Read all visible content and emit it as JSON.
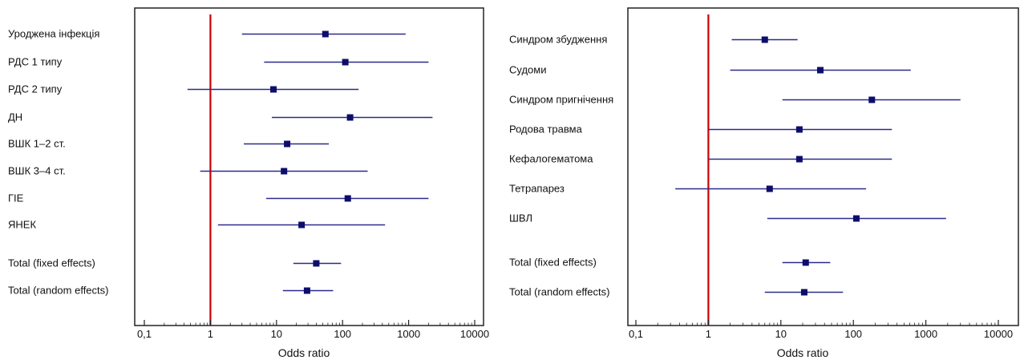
{
  "colors": {
    "ci": "#2b2b8c",
    "point": "#0d0d6b",
    "ref": "#cc0000",
    "frame": "#222222"
  },
  "chart_data": [
    {
      "type": "forest",
      "xlabel": "Odds ratio",
      "xscale": "log",
      "xlim": [
        0.1,
        20000
      ],
      "xticks": [
        {
          "value": 0.1,
          "label": "0,1"
        },
        {
          "value": 1,
          "label": "1"
        },
        {
          "value": 10,
          "label": "10"
        },
        {
          "value": 100,
          "label": "100"
        },
        {
          "value": 1000,
          "label": "1000"
        },
        {
          "value": 10000,
          "label": "10000"
        }
      ],
      "reference_line": 1,
      "rows": [
        {
          "label": "Уроджена інфекція",
          "or": 55,
          "lo": 3.0,
          "hi": 900
        },
        {
          "label": "РДС 1 типу",
          "or": 110,
          "lo": 6.5,
          "hi": 2000
        },
        {
          "label": "РДС 2 типу",
          "or": 9,
          "lo": 0.45,
          "hi": 175
        },
        {
          "label": "ДН",
          "or": 130,
          "lo": 8.5,
          "hi": 2300
        },
        {
          "label": "ВШК 1–2 ст.",
          "or": 14.5,
          "lo": 3.2,
          "hi": 62
        },
        {
          "label": "ВШК 3–4 ст.",
          "or": 13,
          "lo": 0.7,
          "hi": 240
        },
        {
          "label": "ГІЕ",
          "or": 120,
          "lo": 7,
          "hi": 2000
        },
        {
          "label": "ЯНЕК",
          "or": 24,
          "lo": 1.3,
          "hi": 440
        },
        {
          "label": "Total (fixed effects)",
          "or": 40,
          "lo": 18,
          "hi": 95
        },
        {
          "label": "Total (random effects)",
          "or": 29,
          "lo": 12.5,
          "hi": 72
        }
      ]
    },
    {
      "type": "forest",
      "xlabel": "Odds ratio",
      "xscale": "log",
      "xlim": [
        0.1,
        20000
      ],
      "xticks": [
        {
          "value": 0.1,
          "label": "0,1"
        },
        {
          "value": 1,
          "label": "1"
        },
        {
          "value": 10,
          "label": "10"
        },
        {
          "value": 100,
          "label": "100"
        },
        {
          "value": 1000,
          "label": "1000"
        },
        {
          "value": 10000,
          "label": "10000"
        }
      ],
      "reference_line": 1,
      "rows": [
        {
          "label": "Синдром збудження",
          "or": 6,
          "lo": 2.1,
          "hi": 17
        },
        {
          "label": "Судоми",
          "or": 35,
          "lo": 2.0,
          "hi": 620
        },
        {
          "label": "Синдром пригнічення",
          "or": 180,
          "lo": 10.5,
          "hi": 3000
        },
        {
          "label": "Родова травма",
          "or": 18,
          "lo": 1.0,
          "hi": 340
        },
        {
          "label": "Кефалогематома",
          "or": 18,
          "lo": 1.0,
          "hi": 340
        },
        {
          "label": "Тетрапарез",
          "or": 7,
          "lo": 0.35,
          "hi": 150
        },
        {
          "label": "ШВЛ",
          "or": 110,
          "lo": 6.5,
          "hi": 1900
        },
        {
          "label": "Total (fixed effects)",
          "or": 22,
          "lo": 10.5,
          "hi": 48
        },
        {
          "label": "Total (random effects)",
          "or": 21,
          "lo": 6,
          "hi": 72
        }
      ]
    }
  ]
}
